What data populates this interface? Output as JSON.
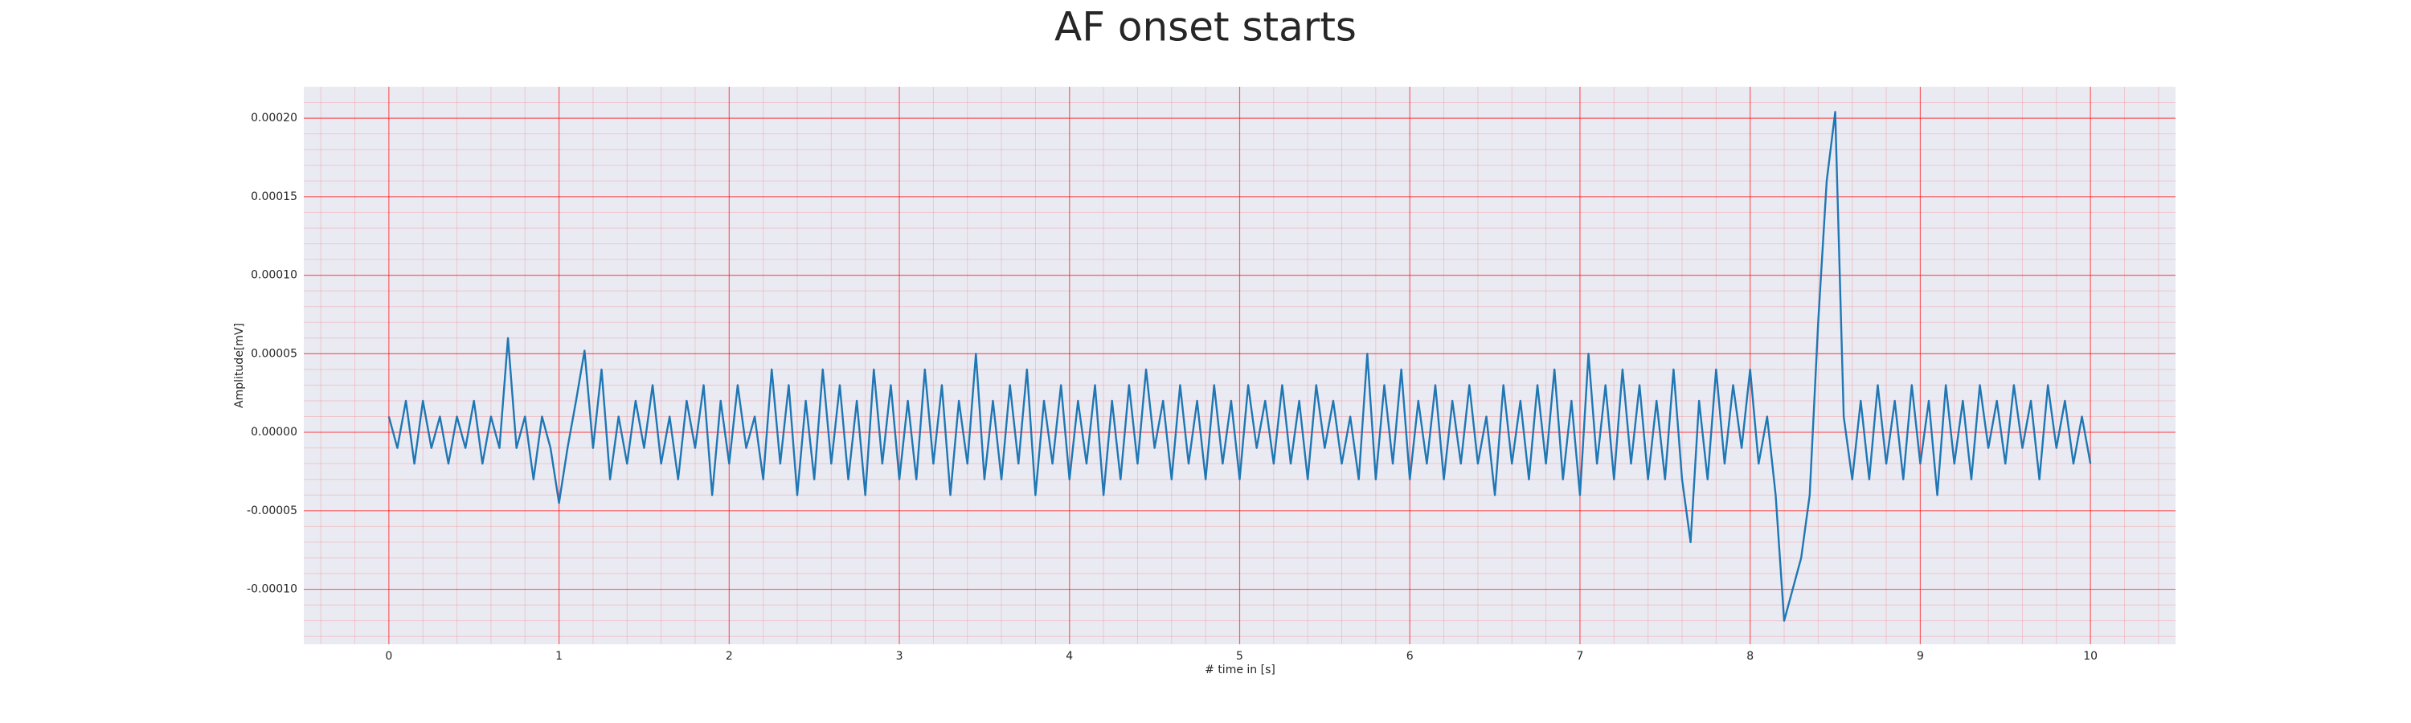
{
  "chart_data": {
    "type": "line",
    "title": "AF onset starts",
    "xlabel": "# time in [s]",
    "ylabel": "Amplitude[mV]",
    "x": [
      0,
      0.05,
      0.1,
      0.15,
      0.2,
      0.25,
      0.3,
      0.35,
      0.4,
      0.45,
      0.5,
      0.55,
      0.6,
      0.65,
      0.7,
      0.75,
      0.8,
      0.85,
      0.9,
      0.95,
      1,
      1.05,
      1.1,
      1.15,
      1.2,
      1.25,
      1.3,
      1.35,
      1.4,
      1.45,
      1.5,
      1.55,
      1.6,
      1.65,
      1.7,
      1.75,
      1.8,
      1.85,
      1.9,
      1.95,
      2,
      2.05,
      2.1,
      2.15,
      2.2,
      2.25,
      2.3,
      2.35,
      2.4,
      2.45,
      2.5,
      2.55,
      2.6,
      2.65,
      2.7,
      2.75,
      2.8,
      2.85,
      2.9,
      2.95,
      3,
      3.05,
      3.1,
      3.15,
      3.2,
      3.25,
      3.3,
      3.35,
      3.4,
      3.45,
      3.5,
      3.55,
      3.6,
      3.65,
      3.7,
      3.75,
      3.8,
      3.85,
      3.9,
      3.95,
      4,
      4.05,
      4.1,
      4.15,
      4.2,
      4.25,
      4.3,
      4.35,
      4.4,
      4.45,
      4.5,
      4.55,
      4.6,
      4.65,
      4.7,
      4.75,
      4.8,
      4.85,
      4.9,
      4.95,
      5,
      5.05,
      5.1,
      5.15,
      5.2,
      5.25,
      5.3,
      5.35,
      5.4,
      5.45,
      5.5,
      5.55,
      5.6,
      5.65,
      5.7,
      5.75,
      5.8,
      5.85,
      5.9,
      5.95,
      6,
      6.05,
      6.1,
      6.15,
      6.2,
      6.25,
      6.3,
      6.35,
      6.4,
      6.45,
      6.5,
      6.55,
      6.6,
      6.65,
      6.7,
      6.75,
      6.8,
      6.85,
      6.9,
      6.95,
      7,
      7.05,
      7.1,
      7.15,
      7.2,
      7.25,
      7.3,
      7.35,
      7.4,
      7.45,
      7.5,
      7.55,
      7.6,
      7.65,
      7.7,
      7.75,
      7.8,
      7.85,
      7.9,
      7.95,
      8,
      8.05,
      8.1,
      8.15,
      8.2,
      8.25,
      8.3,
      8.35,
      8.4,
      8.45,
      8.5,
      8.55,
      8.6,
      8.65,
      8.7,
      8.75,
      8.8,
      8.85,
      8.9,
      8.95,
      9,
      9.05,
      9.1,
      9.15,
      9.2,
      9.25,
      9.3,
      9.35,
      9.4,
      9.45,
      9.5,
      9.55,
      9.6,
      9.65,
      9.7,
      9.75,
      9.8,
      9.85,
      9.9,
      9.95,
      10
    ],
    "series": [
      {
        "color": "#1f77b4",
        "values": [
          1e-05,
          -1e-05,
          2e-05,
          -2e-05,
          2e-05,
          -1e-05,
          1e-05,
          -2e-05,
          1e-05,
          -1e-05,
          2e-05,
          -2e-05,
          1e-05,
          -1e-05,
          6e-05,
          -1e-05,
          1e-05,
          -3e-05,
          1e-05,
          -1e-05,
          -4.5e-05,
          -1e-05,
          2e-05,
          5.2e-05,
          -1e-05,
          4e-05,
          -3e-05,
          1e-05,
          -2e-05,
          2e-05,
          -1e-05,
          3e-05,
          -2e-05,
          1e-05,
          -3e-05,
          2e-05,
          -1e-05,
          3e-05,
          -4e-05,
          2e-05,
          -2e-05,
          3e-05,
          -1e-05,
          1e-05,
          -3e-05,
          4e-05,
          -2e-05,
          3e-05,
          -4e-05,
          2e-05,
          -3e-05,
          4e-05,
          -2e-05,
          3e-05,
          -3e-05,
          2e-05,
          -4e-05,
          4e-05,
          -2e-05,
          3e-05,
          -3e-05,
          2e-05,
          -3e-05,
          4e-05,
          -2e-05,
          3e-05,
          -4e-05,
          2e-05,
          -2e-05,
          5e-05,
          -3e-05,
          2e-05,
          -3e-05,
          3e-05,
          -2e-05,
          4e-05,
          -4e-05,
          2e-05,
          -2e-05,
          3e-05,
          -3e-05,
          2e-05,
          -2e-05,
          3e-05,
          -4e-05,
          2e-05,
          -3e-05,
          3e-05,
          -2e-05,
          4e-05,
          -1e-05,
          2e-05,
          -3e-05,
          3e-05,
          -2e-05,
          2e-05,
          -3e-05,
          3e-05,
          -2e-05,
          2e-05,
          -3e-05,
          3e-05,
          -1e-05,
          2e-05,
          -2e-05,
          3e-05,
          -2e-05,
          2e-05,
          -3e-05,
          3e-05,
          -1e-05,
          2e-05,
          -2e-05,
          1e-05,
          -3e-05,
          5e-05,
          -3e-05,
          3e-05,
          -2e-05,
          4e-05,
          -3e-05,
          2e-05,
          -2e-05,
          3e-05,
          -3e-05,
          2e-05,
          -2e-05,
          3e-05,
          -2e-05,
          1e-05,
          -4e-05,
          3e-05,
          -2e-05,
          2e-05,
          -3e-05,
          3e-05,
          -2e-05,
          4e-05,
          -3e-05,
          2e-05,
          -4e-05,
          5e-05,
          -2e-05,
          3e-05,
          -3e-05,
          4e-05,
          -2e-05,
          3e-05,
          -3e-05,
          2e-05,
          -3e-05,
          4e-05,
          -3e-05,
          -7e-05,
          2e-05,
          -3e-05,
          4e-05,
          -2e-05,
          3e-05,
          -1e-05,
          4e-05,
          -2e-05,
          1e-05,
          -4e-05,
          -0.00012,
          -0.0001,
          -8e-05,
          -4e-05,
          7e-05,
          0.00016,
          0.000204,
          1e-05,
          -3e-05,
          2e-05,
          -3e-05,
          3e-05,
          -2e-05,
          2e-05,
          -3e-05,
          3e-05,
          -2e-05,
          2e-05,
          -4e-05,
          3e-05,
          -2e-05,
          2e-05,
          -3e-05,
          3e-05,
          -1e-05,
          2e-05,
          -2e-05,
          3e-05,
          -1e-05,
          2e-05,
          -3e-05,
          3e-05,
          -1e-05,
          2e-05,
          -2e-05,
          1e-05,
          -2e-05
        ]
      }
    ],
    "xlim": [
      -0.5,
      10.5
    ],
    "ylim": [
      -0.000135,
      0.00022
    ],
    "xticks": [
      0,
      1,
      2,
      3,
      4,
      5,
      6,
      7,
      8,
      9,
      10
    ],
    "yticks": [
      {
        "value": -0.0001,
        "label": "-0.00010"
      },
      {
        "value": -5e-05,
        "label": "-0.00005"
      },
      {
        "value": 0,
        "label": "0.00000"
      },
      {
        "value": 5e-05,
        "label": "0.00005"
      },
      {
        "value": 0.0001,
        "label": "0.00010"
      },
      {
        "value": 0.00015,
        "label": "0.00015"
      },
      {
        "value": 0.0002,
        "label": "0.00020"
      }
    ],
    "grid": true,
    "minor_grid": true,
    "minor_divisions": 5,
    "grid_color": "#ff0000",
    "background": "#eaeaf2"
  }
}
